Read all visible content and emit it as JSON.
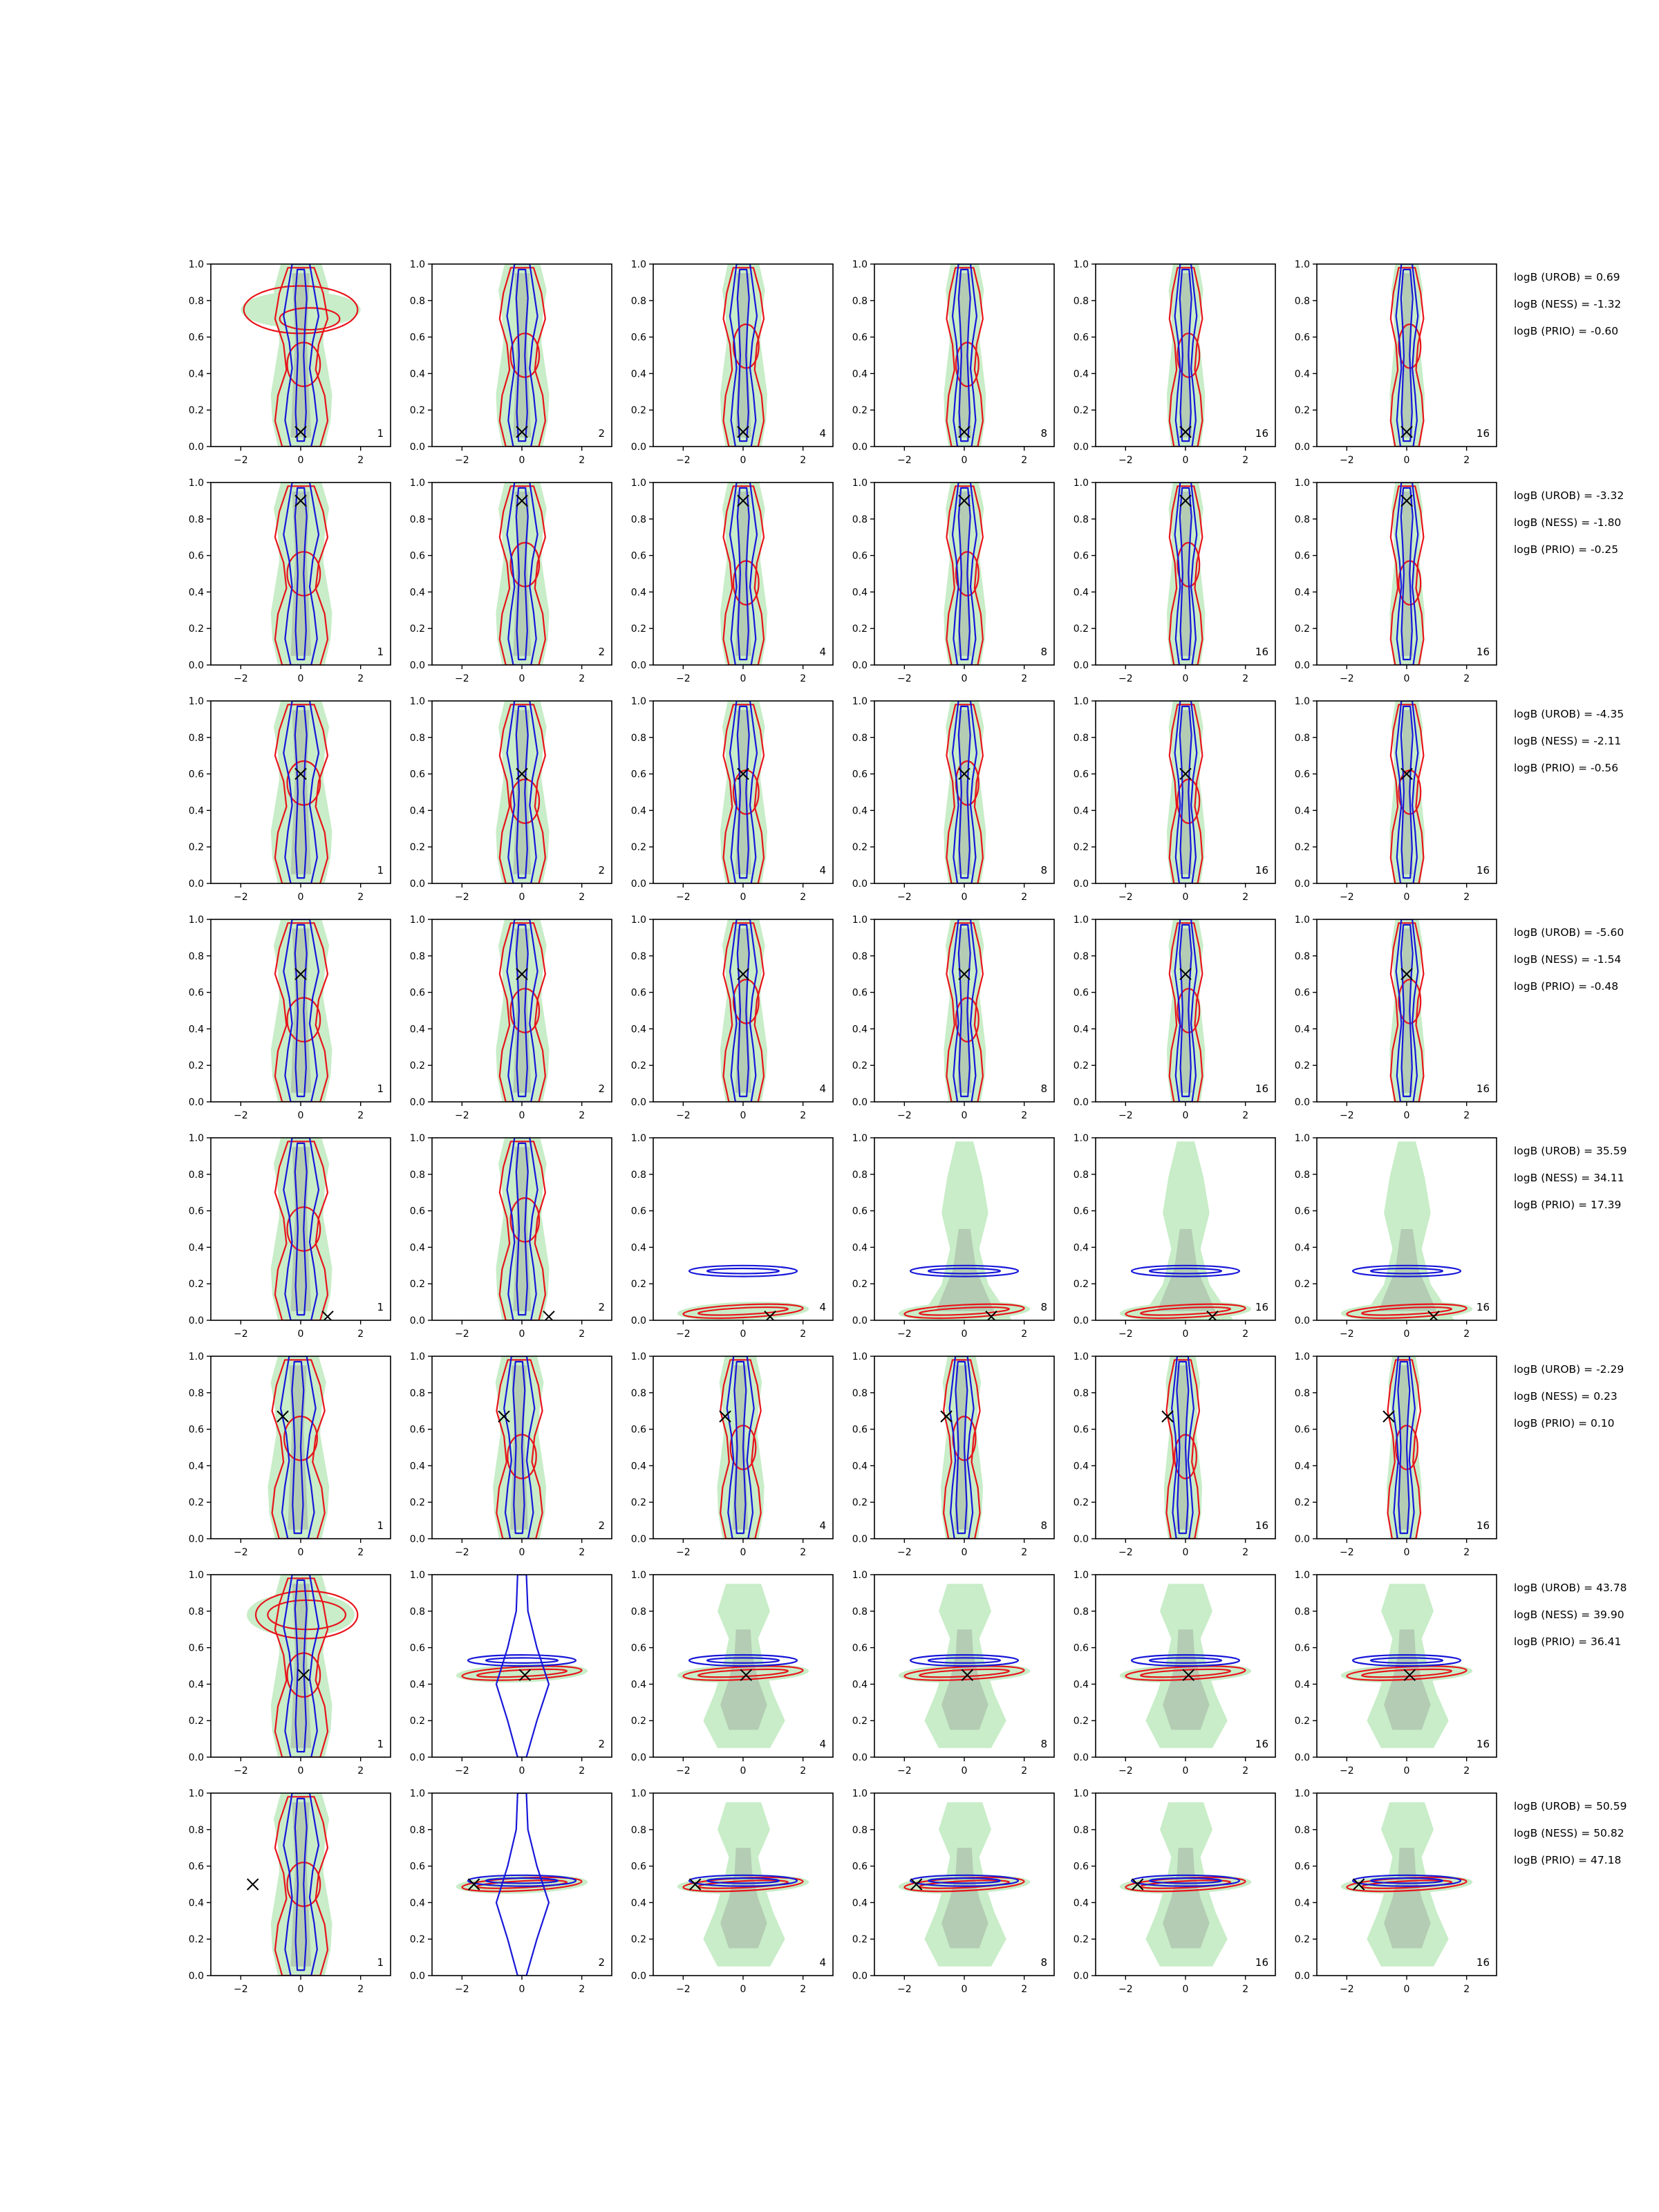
{
  "chart_data": {
    "type": "contour-grid",
    "rows": 8,
    "cols": 6,
    "xlim": [
      -3,
      3
    ],
    "ylim": [
      0,
      1
    ],
    "xticks": [
      -2,
      0,
      2
    ],
    "yticks": [
      0.0,
      0.2,
      0.4,
      0.6,
      0.8,
      1.0
    ],
    "xtick_labels": [
      "−2",
      "0",
      "2"
    ],
    "ytick_labels": [
      "0.0",
      "0.2",
      "0.4",
      "0.6",
      "0.8",
      "1.0"
    ],
    "colors": {
      "fill_outer": "#c8edc8",
      "fill_inner": "#b3ccb3",
      "red": "#e8141a",
      "blue": "#1717d9",
      "axes": "#000000"
    },
    "panel_labels": [
      "1",
      "2",
      "4",
      "8",
      "16",
      "16"
    ],
    "truth_markers": [
      {
        "x": 0.0,
        "y": 0.08
      },
      {
        "x": 0.0,
        "y": 0.9
      },
      {
        "x": 0.0,
        "y": 0.6
      },
      {
        "x": 0.0,
        "y": 0.7
      },
      {
        "x": 0.9,
        "y": 0.02
      },
      {
        "x": -0.6,
        "y": 0.67
      },
      {
        "x": 0.1,
        "y": 0.45
      },
      {
        "x": -1.6,
        "y": 0.5
      }
    ],
    "bayes_factors": [
      [
        "logB (UROB) = 0.69",
        "logB (NESS) = -1.32",
        "logB (PRIO) = -0.60"
      ],
      [
        "logB (UROB) = -3.32",
        "logB (NESS) = -1.80",
        "logB (PRIO) = -0.25"
      ],
      [
        "logB (UROB) = -4.35",
        "logB (NESS) = -2.11",
        "logB (PRIO) = -0.56"
      ],
      [
        "logB (UROB) = -5.60",
        "logB (NESS) = -1.54",
        "logB (PRIO) = -0.48"
      ],
      [
        "logB (UROB) = 35.59",
        "logB (NESS) = 34.11",
        "logB (PRIO) = 17.39"
      ],
      [
        "logB (UROB) = -2.29",
        "logB (NESS) = 0.23",
        "logB (PRIO) = 0.10"
      ],
      [
        "logB (UROB) = 43.78",
        "logB (NESS) = 39.90",
        "logB (PRIO) = 36.41"
      ],
      [
        "logB (UROB) = 50.59",
        "logB (NESS) = 50.82",
        "logB (PRIO) = 47.18"
      ]
    ]
  }
}
